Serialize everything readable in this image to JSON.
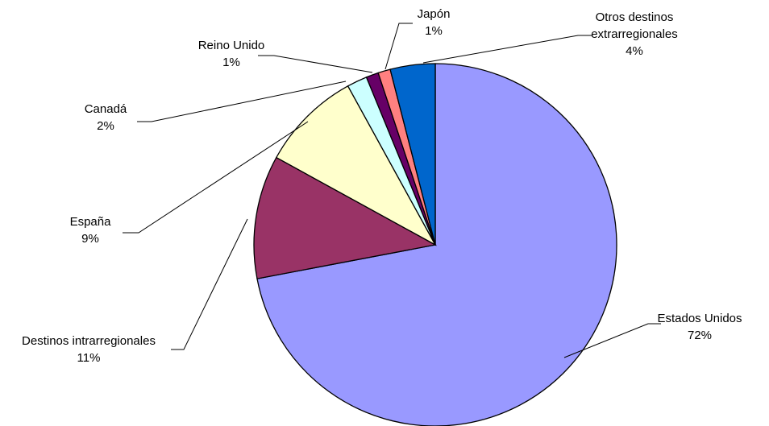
{
  "chart_data": {
    "type": "pie",
    "title": "",
    "start": "top",
    "direction": "clockwise",
    "slices": [
      {
        "label": "Estados Unidos",
        "percent_label": "72%",
        "value": 72.0,
        "color": "#9999FF"
      },
      {
        "label": "Destinos intrarregionales",
        "percent_label": "11%",
        "value": 11.0,
        "color": "#993366"
      },
      {
        "label": "España",
        "percent_label": "9%",
        "value": 9.0,
        "color": "#FFFFCC"
      },
      {
        "label": "Canadá",
        "percent_label": "2%",
        "value": 1.8,
        "color": "#CCFFFF"
      },
      {
        "label": "Reino Unido",
        "percent_label": "1%",
        "value": 1.1,
        "color": "#660066"
      },
      {
        "label": "Japón",
        "percent_label": "1%",
        "value": 1.1,
        "color": "#FF8080"
      },
      {
        "label": "Otros destinos extrarregionales",
        "percent_label": "4%",
        "value": 4.0,
        "color": "#0066CC"
      }
    ]
  }
}
